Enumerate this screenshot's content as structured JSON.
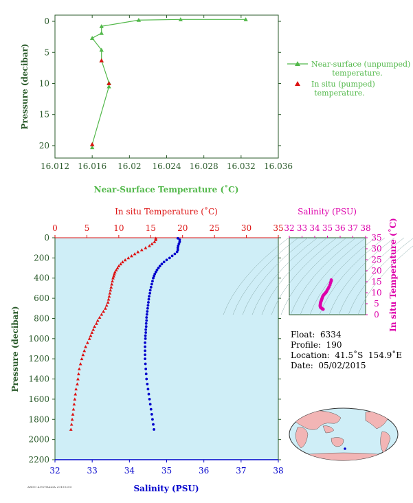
{
  "colors": {
    "green_axis": "#2a5a2a",
    "green_series": "#52b84a",
    "red": "#dd1111",
    "blue": "#0000cc",
    "magenta": "#dd00aa",
    "plot_bg": "#cfeef7"
  },
  "chart_data": [
    {
      "type": "line",
      "xlabel": "Near-Surface Temperature (˚C)",
      "ylabel": "Pressure (decibar)",
      "xlim": [
        16.012,
        16.036
      ],
      "ylim": [
        22,
        -1
      ],
      "x_ticks": [
        "16.012",
        "16.016",
        "16.02",
        "16.024",
        "16.028",
        "16.032",
        "16.036"
      ],
      "y_ticks": [
        "0",
        "5",
        "10",
        "15",
        "20"
      ],
      "grid": false,
      "legend_position": "right",
      "series": [
        {
          "name": "Near-surface (unpumped) temperature.",
          "marker": "triangle",
          "x": [
            16.0325,
            16.0255,
            16.021,
            16.017,
            16.017,
            16.016,
            16.017,
            16.017,
            16.0178,
            16.0178,
            16.016,
            16.016
          ],
          "y": [
            -0.3,
            -0.3,
            -0.2,
            0.8,
            1.9,
            2.7,
            4.6,
            6.3,
            9.9,
            10.5,
            19.8,
            20.3
          ]
        },
        {
          "name": "In situ (pumped) temperature.",
          "marker": "triangle",
          "x": [
            16.017,
            16.0178,
            16.016
          ],
          "y": [
            6.3,
            10.0,
            19.8
          ]
        }
      ]
    },
    {
      "type": "scatter",
      "ylabel": "Pressure (decibar)",
      "top_axis_label": "In situ Temperature (˚C)",
      "bottom_axis_label": "Salinity (PSU)",
      "temp_lim": [
        0,
        35
      ],
      "sal_lim": [
        32,
        38
      ],
      "ylim": [
        2200,
        0
      ],
      "temp_ticks": [
        "0",
        "5",
        "10",
        "15",
        "20",
        "25",
        "30",
        "35"
      ],
      "sal_ticks": [
        "32",
        "33",
        "34",
        "35",
        "36",
        "37",
        "38"
      ],
      "y_ticks": [
        "0",
        "200",
        "400",
        "600",
        "800",
        "1000",
        "1200",
        "1400",
        "1600",
        "1800",
        "2000",
        "2200"
      ],
      "temperature_profile": {
        "pressure": [
          5,
          20,
          40,
          60,
          80,
          100,
          120,
          140,
          160,
          180,
          200,
          220,
          240,
          260,
          280,
          300,
          320,
          340,
          360,
          380,
          400,
          430,
          460,
          490,
          520,
          550,
          580,
          610,
          640,
          670,
          700,
          730,
          760,
          790,
          820,
          850,
          880,
          910,
          940,
          970,
          1000,
          1040,
          1080,
          1120,
          1160,
          1200,
          1250,
          1300,
          1350,
          1400,
          1450,
          1500,
          1550,
          1600,
          1650,
          1700,
          1750,
          1800,
          1850,
          1900
        ],
        "temperature": [
          15.8,
          15.8,
          15.6,
          15.2,
          14.8,
          14.2,
          13.6,
          13.0,
          12.5,
          12.0,
          11.5,
          11.0,
          10.6,
          10.3,
          10.0,
          9.8,
          9.6,
          9.4,
          9.3,
          9.2,
          9.1,
          9.0,
          8.9,
          8.8,
          8.7,
          8.6,
          8.5,
          8.4,
          8.3,
          8.1,
          7.9,
          7.6,
          7.3,
          7.0,
          6.7,
          6.5,
          6.2,
          6.0,
          5.8,
          5.6,
          5.4,
          5.1,
          4.8,
          4.6,
          4.4,
          4.2,
          4.0,
          3.8,
          3.7,
          3.6,
          3.5,
          3.3,
          3.2,
          3.1,
          3.0,
          2.9,
          2.8,
          2.7,
          2.6,
          2.5
        ]
      },
      "salinity_profile": {
        "pressure": [
          5,
          20,
          40,
          60,
          80,
          100,
          120,
          140,
          160,
          180,
          200,
          220,
          240,
          260,
          280,
          300,
          320,
          340,
          360,
          380,
          400,
          430,
          460,
          490,
          520,
          550,
          580,
          610,
          640,
          670,
          700,
          730,
          760,
          790,
          820,
          850,
          880,
          910,
          940,
          970,
          1000,
          1040,
          1080,
          1120,
          1160,
          1200,
          1250,
          1300,
          1350,
          1400,
          1450,
          1500,
          1550,
          1600,
          1650,
          1700,
          1750,
          1800,
          1850,
          1900
        ],
        "salinity": [
          35.3,
          35.35,
          35.35,
          35.33,
          35.31,
          35.3,
          35.3,
          35.28,
          35.22,
          35.15,
          35.08,
          35.0,
          34.93,
          34.87,
          34.82,
          34.78,
          34.74,
          34.71,
          34.68,
          34.66,
          34.64,
          34.62,
          34.6,
          34.58,
          34.56,
          34.55,
          34.53,
          34.52,
          34.51,
          34.5,
          34.49,
          34.48,
          34.47,
          34.46,
          34.46,
          34.45,
          34.45,
          34.44,
          34.44,
          34.43,
          34.43,
          34.42,
          34.42,
          34.42,
          34.42,
          34.42,
          34.43,
          34.44,
          34.45,
          34.46,
          34.48,
          34.5,
          34.52,
          34.54,
          34.56,
          34.58,
          34.6,
          34.62,
          34.64,
          34.66
        ]
      }
    },
    {
      "type": "scatter",
      "xlabel": "Salinity (PSU)",
      "ylabel": "In situ Temperature (˚C)",
      "xlim": [
        32,
        38
      ],
      "ylim": [
        0,
        35
      ],
      "x_ticks": [
        "32",
        "33",
        "34",
        "35",
        "36",
        "37",
        "38"
      ],
      "y_ticks": [
        "0",
        "5",
        "10",
        "15",
        "20",
        "25",
        "30",
        "35"
      ],
      "ts_points": {
        "salinity": [
          35.3,
          35.3,
          35.25,
          35.2,
          35.12,
          35.05,
          34.98,
          34.92,
          34.86,
          34.8,
          34.75,
          34.71,
          34.67,
          34.63,
          34.6,
          34.57,
          34.54,
          34.51,
          34.48,
          34.46,
          34.45,
          34.44,
          34.43,
          34.43,
          34.44,
          34.46,
          34.5,
          34.55,
          34.6,
          34.66
        ],
        "temperature": [
          15.8,
          15.4,
          14.6,
          13.6,
          12.6,
          11.8,
          11.1,
          10.5,
          10.0,
          9.6,
          9.3,
          9.0,
          8.7,
          8.3,
          7.8,
          7.3,
          6.8,
          6.3,
          5.9,
          5.5,
          5.1,
          4.7,
          4.3,
          4.0,
          3.7,
          3.4,
          3.1,
          2.9,
          2.7,
          2.5
        ]
      }
    }
  ],
  "legend": {
    "item1_line1": "Near-surface (unpumped)",
    "item1_line2": "temperature.",
    "item2_line1": "In situ (pumped)",
    "item2_line2": "temperature."
  },
  "info": {
    "float": "Float:  6334",
    "profile": "Profile:  190",
    "location": "Location:  41.5˚S  154.9˚E",
    "date": "Date:  05/02/2015"
  },
  "footer_text": "ARGO AUSTRALIA 20150205"
}
